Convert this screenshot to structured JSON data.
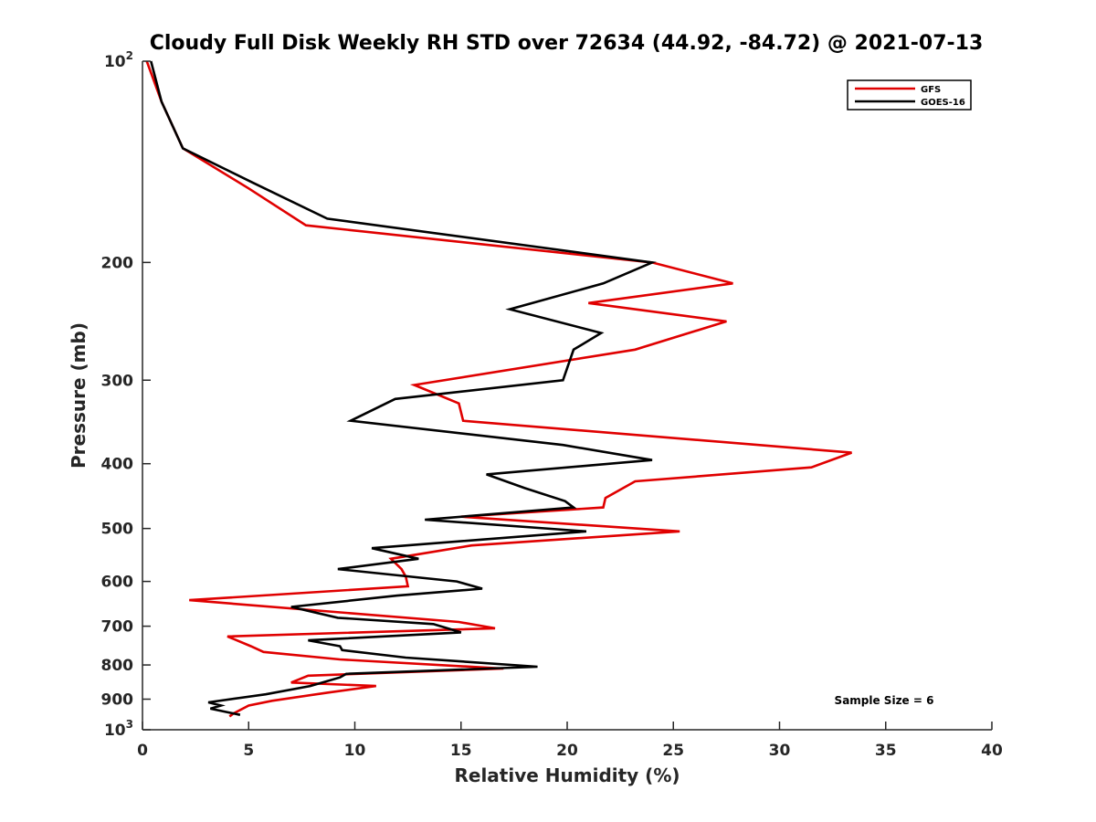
{
  "chart_data": {
    "type": "line",
    "title": "Cloudy Full Disk Weekly RH STD over 72634 (44.92, -84.72) @ 2021-07-13",
    "xlabel": "Relative Humidity (%)",
    "ylabel": "Pressure (mb)",
    "xlim": [
      0,
      40
    ],
    "ylim": [
      100,
      1000
    ],
    "y_scale": "log",
    "y_reversed": true,
    "x_ticks": [
      "0",
      "5",
      "10",
      "15",
      "20",
      "25",
      "30",
      "35",
      "40"
    ],
    "y_ticks": [
      {
        "value": 100,
        "label": "10",
        "sup": "2"
      },
      {
        "value": 200,
        "label": "200"
      },
      {
        "value": 300,
        "label": "300"
      },
      {
        "value": 400,
        "label": "400"
      },
      {
        "value": 500,
        "label": "500"
      },
      {
        "value": 600,
        "label": "600"
      },
      {
        "value": 700,
        "label": "700"
      },
      {
        "value": 800,
        "label": "800"
      },
      {
        "value": 900,
        "label": "900"
      },
      {
        "value": 1000,
        "label": "10",
        "sup": "3"
      }
    ],
    "grid": false,
    "legend_position": "top-right",
    "annotation": "Sample Size = 6",
    "series": [
      {
        "name": "GFS",
        "color": "#e00000",
        "points": [
          [
            0.2,
            100
          ],
          [
            0.9,
            115
          ],
          [
            1.9,
            135
          ],
          [
            5,
            155
          ],
          [
            7.7,
            176
          ],
          [
            24,
            200
          ],
          [
            27.8,
            215
          ],
          [
            21,
            230
          ],
          [
            27.5,
            245
          ],
          [
            23.2,
            270
          ],
          [
            12.8,
            305
          ],
          [
            14.9,
            325
          ],
          [
            15.1,
            345
          ],
          [
            33.4,
            385
          ],
          [
            31.5,
            405
          ],
          [
            23.2,
            425
          ],
          [
            21.8,
            450
          ],
          [
            21.7,
            465
          ],
          [
            15,
            480
          ],
          [
            25.3,
            505
          ],
          [
            15.5,
            530
          ],
          [
            11.7,
            555
          ],
          [
            12.2,
            575
          ],
          [
            12.4,
            590
          ],
          [
            12.5,
            610
          ],
          [
            2.2,
            640
          ],
          [
            14.9,
            690
          ],
          [
            16.6,
            705
          ],
          [
            4,
            725
          ],
          [
            5.1,
            750
          ],
          [
            5.7,
            765
          ],
          [
            9.3,
            785
          ],
          [
            17,
            810
          ],
          [
            7.8,
            830
          ],
          [
            7,
            850
          ],
          [
            11,
            860
          ],
          [
            8.7,
            880
          ],
          [
            6.1,
            905
          ],
          [
            5,
            920
          ],
          [
            4.3,
            945
          ],
          [
            4.1,
            955
          ]
        ]
      },
      {
        "name": "GOES-16",
        "color": "#000000",
        "points": [
          [
            0.4,
            100
          ],
          [
            0.9,
            115
          ],
          [
            1.9,
            135
          ],
          [
            5.2,
            152
          ],
          [
            8.7,
            172
          ],
          [
            24,
            200
          ],
          [
            21.7,
            215
          ],
          [
            17.3,
            235
          ],
          [
            21.6,
            255
          ],
          [
            20.3,
            270
          ],
          [
            19.8,
            300
          ],
          [
            11.9,
            320
          ],
          [
            9.8,
            345
          ],
          [
            19.8,
            375
          ],
          [
            24,
            395
          ],
          [
            16.2,
            415
          ],
          [
            18,
            435
          ],
          [
            19.9,
            455
          ],
          [
            20.3,
            465
          ],
          [
            13.3,
            485
          ],
          [
            20.9,
            505
          ],
          [
            10.8,
            535
          ],
          [
            13,
            555
          ],
          [
            9.2,
            575
          ],
          [
            14.8,
            600
          ],
          [
            16,
            615
          ],
          [
            12,
            630
          ],
          [
            7,
            655
          ],
          [
            9.2,
            680
          ],
          [
            13.7,
            695
          ],
          [
            15,
            715
          ],
          [
            7.8,
            735
          ],
          [
            9.3,
            750
          ],
          [
            9.4,
            760
          ],
          [
            12.4,
            780
          ],
          [
            18.6,
            805
          ],
          [
            9.6,
            825
          ],
          [
            9.3,
            835
          ],
          [
            7.9,
            860
          ],
          [
            5.8,
            885
          ],
          [
            3.1,
            910
          ],
          [
            3.7,
            920
          ],
          [
            3.2,
            930
          ],
          [
            4.6,
            950
          ]
        ]
      }
    ]
  }
}
